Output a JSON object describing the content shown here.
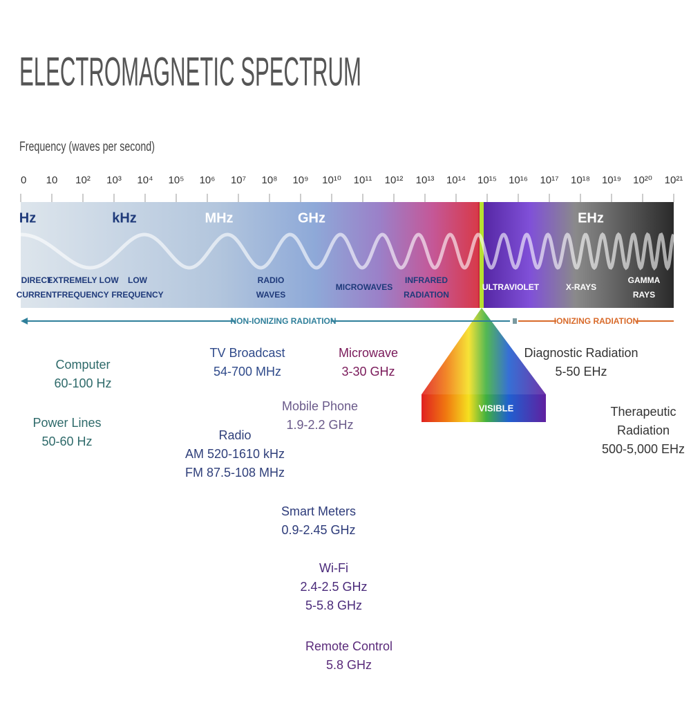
{
  "title": "ELECTROMAGNETIC SPECTRUM",
  "axis_label": "Frequency (waves per second)",
  "ticks": [
    "0",
    "10",
    "10²",
    "10³",
    "10⁴",
    "10⁵",
    "10⁶",
    "10⁷",
    "10⁸",
    "10⁹",
    "10¹⁰",
    "10¹¹",
    "10¹²",
    "10¹³",
    "10¹⁴",
    "10¹⁵",
    "10¹⁶",
    "10¹⁷",
    "10¹⁸",
    "10¹⁹",
    "10²⁰",
    "10²¹"
  ],
  "bands": [
    "Hz",
    "kHz",
    "MHz",
    "GHz",
    "EHz"
  ],
  "regions": [
    {
      "lines": [
        "DIRECT",
        "CURRENT"
      ]
    },
    {
      "lines": [
        "EXTREMELY LOW",
        "FREQUENCY"
      ]
    },
    {
      "lines": [
        "LOW",
        "FREQUENCY"
      ]
    },
    {
      "lines": [
        "RADIO",
        "WAVES"
      ]
    },
    {
      "lines": [
        "MICROWAVES"
      ]
    },
    {
      "lines": [
        "INFRARED",
        "RADIATION"
      ]
    },
    {
      "lines": [
        "ULTRAVIOLET"
      ]
    },
    {
      "lines": [
        "X-RAYS"
      ]
    },
    {
      "lines": [
        "GAMMA",
        "RAYS"
      ]
    }
  ],
  "non_ionizing": "NON-IONIZING RADIATION",
  "ionizing": "IONIZING RADIATION",
  "visible": "VISIBLE",
  "sources": [
    {
      "lines": [
        "Computer",
        "60-100 Hz"
      ]
    },
    {
      "lines": [
        "Power Lines",
        "50-60 Hz"
      ]
    },
    {
      "lines": [
        "TV Broadcast",
        "54-700 MHz"
      ]
    },
    {
      "lines": [
        "Radio",
        "AM 520-1610 kHz",
        "FM 87.5-108 MHz"
      ]
    },
    {
      "lines": [
        "Microwave",
        "3-30 GHz"
      ]
    },
    {
      "lines": [
        "Mobile Phone",
        "1.9-2.2 GHz"
      ]
    },
    {
      "lines": [
        "Smart Meters",
        "0.9-2.45 GHz"
      ]
    },
    {
      "lines": [
        "Wi-Fi",
        "2.4-2.5 GHz",
        "5-5.8 GHz"
      ]
    },
    {
      "lines": [
        "Remote Control",
        "5.8 GHz"
      ]
    },
    {
      "lines": [
        "Diagnostic Radiation",
        "5-50 EHz"
      ]
    },
    {
      "lines": [
        "Therapeutic",
        "Radiation",
        "500-5,000 EHz"
      ]
    }
  ]
}
